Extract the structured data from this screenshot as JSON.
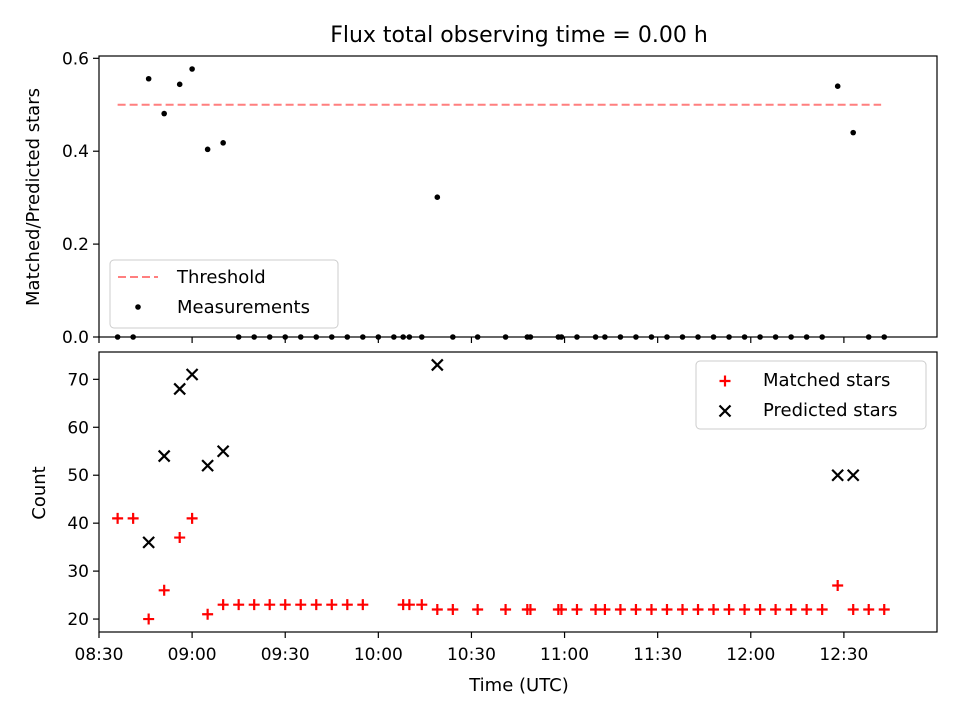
{
  "chart_data": [
    {
      "type": "scatter",
      "title": "Flux total observing time = 0.00 h",
      "xlabel": "",
      "ylabel": "Matched/Predicted stars",
      "ylim": [
        0,
        0.605
      ],
      "yticks": [
        "0.0",
        "0.2",
        "0.4",
        "0.6"
      ],
      "legend": {
        "position": "lower-left",
        "entries": [
          "Threshold",
          "Measurements"
        ]
      },
      "threshold": {
        "name": "Threshold",
        "value": 0.5,
        "x_range": [
          "08:36",
          "12:42"
        ],
        "color": "#ff7f7f"
      },
      "series": [
        {
          "name": "Measurements",
          "color": "#000000",
          "points": [
            [
              "08:36",
              0.0
            ],
            [
              "08:41",
              0.0
            ],
            [
              "08:46",
              0.556
            ],
            [
              "08:51",
              0.481
            ],
            [
              "08:56",
              0.544
            ],
            [
              "09:00",
              0.577
            ],
            [
              "09:05",
              0.404
            ],
            [
              "09:10",
              0.418
            ],
            [
              "09:15",
              0.0
            ],
            [
              "09:20",
              0.0
            ],
            [
              "09:25",
              0.0
            ],
            [
              "09:30",
              0.0
            ],
            [
              "09:35",
              0.0
            ],
            [
              "09:40",
              0.0
            ],
            [
              "09:45",
              0.0
            ],
            [
              "09:50",
              0.0
            ],
            [
              "09:55",
              0.0
            ],
            [
              "10:00",
              0.0
            ],
            [
              "10:05",
              0.0
            ],
            [
              "10:08",
              0.0
            ],
            [
              "10:10",
              0.0
            ],
            [
              "10:14",
              0.0
            ],
            [
              "10:19",
              0.301
            ],
            [
              "10:24",
              0.0
            ],
            [
              "10:32",
              0.0
            ],
            [
              "10:41",
              0.0
            ],
            [
              "10:48",
              0.0
            ],
            [
              "10:49",
              0.0
            ],
            [
              "10:58",
              0.0
            ],
            [
              "10:59",
              0.0
            ],
            [
              "11:04",
              0.0
            ],
            [
              "11:10",
              0.0
            ],
            [
              "11:13",
              0.0
            ],
            [
              "11:18",
              0.0
            ],
            [
              "11:23",
              0.0
            ],
            [
              "11:28",
              0.0
            ],
            [
              "11:33",
              0.0
            ],
            [
              "11:38",
              0.0
            ],
            [
              "11:43",
              0.0
            ],
            [
              "11:48",
              0.0
            ],
            [
              "11:53",
              0.0
            ],
            [
              "11:58",
              0.0
            ],
            [
              "12:03",
              0.0
            ],
            [
              "12:08",
              0.0
            ],
            [
              "12:13",
              0.0
            ],
            [
              "12:18",
              0.0
            ],
            [
              "12:23",
              0.0
            ],
            [
              "12:28",
              0.54
            ],
            [
              "12:33",
              0.44
            ],
            [
              "12:38",
              0.0
            ],
            [
              "12:43",
              0.0
            ]
          ]
        }
      ]
    },
    {
      "type": "scatter",
      "title": "",
      "xlabel": "Time (UTC)",
      "ylabel": "Count",
      "ylim": [
        17.3,
        75.7
      ],
      "yticks": [
        "20",
        "30",
        "40",
        "50",
        "60",
        "70"
      ],
      "xlim": [
        "08:30",
        "13:00"
      ],
      "xticks": [
        "08:30",
        "09:00",
        "09:30",
        "10:00",
        "10:30",
        "11:00",
        "11:30",
        "12:00",
        "12:30"
      ],
      "legend": {
        "position": "top-right",
        "entries": [
          "Matched stars",
          "Predicted stars"
        ]
      },
      "series": [
        {
          "name": "Matched stars",
          "marker": "+",
          "color": "#ff0000",
          "points": [
            [
              "08:36",
              41
            ],
            [
              "08:41",
              41
            ],
            [
              "08:46",
              20
            ],
            [
              "08:51",
              26
            ],
            [
              "08:56",
              37
            ],
            [
              "09:00",
              41
            ],
            [
              "09:05",
              21
            ],
            [
              "09:10",
              23
            ],
            [
              "09:15",
              23
            ],
            [
              "09:20",
              23
            ],
            [
              "09:25",
              23
            ],
            [
              "09:30",
              23
            ],
            [
              "09:35",
              23
            ],
            [
              "09:40",
              23
            ],
            [
              "09:45",
              23
            ],
            [
              "09:50",
              23
            ],
            [
              "09:55",
              23
            ],
            [
              "10:08",
              23
            ],
            [
              "10:10",
              23
            ],
            [
              "10:14",
              23
            ],
            [
              "10:19",
              22
            ],
            [
              "10:24",
              22
            ],
            [
              "10:32",
              22
            ],
            [
              "10:41",
              22
            ],
            [
              "10:48",
              22
            ],
            [
              "10:49",
              22
            ],
            [
              "10:58",
              22
            ],
            [
              "10:59",
              22
            ],
            [
              "11:04",
              22
            ],
            [
              "11:10",
              22
            ],
            [
              "11:13",
              22
            ],
            [
              "11:18",
              22
            ],
            [
              "11:23",
              22
            ],
            [
              "11:28",
              22
            ],
            [
              "11:33",
              22
            ],
            [
              "11:38",
              22
            ],
            [
              "11:43",
              22
            ],
            [
              "11:48",
              22
            ],
            [
              "11:53",
              22
            ],
            [
              "11:58",
              22
            ],
            [
              "12:03",
              22
            ],
            [
              "12:08",
              22
            ],
            [
              "12:13",
              22
            ],
            [
              "12:18",
              22
            ],
            [
              "12:23",
              22
            ],
            [
              "12:28",
              27
            ],
            [
              "12:33",
              22
            ],
            [
              "12:38",
              22
            ],
            [
              "12:43",
              22
            ]
          ]
        },
        {
          "name": "Predicted stars",
          "marker": "x",
          "color": "#000000",
          "points": [
            [
              "08:46",
              36
            ],
            [
              "08:51",
              54
            ],
            [
              "08:56",
              68
            ],
            [
              "09:00",
              71
            ],
            [
              "09:05",
              52
            ],
            [
              "09:10",
              55
            ],
            [
              "10:19",
              73
            ],
            [
              "12:28",
              50
            ],
            [
              "12:33",
              50
            ]
          ]
        }
      ]
    }
  ]
}
